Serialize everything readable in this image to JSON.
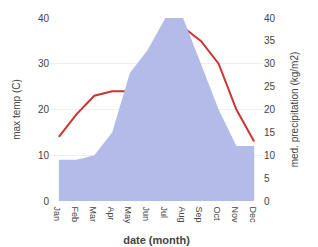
{
  "chart_data": {
    "type": "line",
    "categories": [
      "Jan",
      "Feb",
      "Mar",
      "Apr",
      "May",
      "Jun",
      "Jul",
      "Aug",
      "Sep",
      "Oct",
      "Nov",
      "Dec"
    ],
    "series": [
      {
        "type": "area",
        "color": "#b3bce8",
        "axis": "y2",
        "values": [
          9,
          9,
          10,
          15,
          28,
          33,
          40,
          40,
          30,
          20,
          12,
          12
        ]
      },
      {
        "type": "line",
        "color": "#cc3333",
        "values": [
          14,
          19,
          23,
          24,
          24,
          30,
          35,
          38,
          35,
          30,
          20,
          13
        ]
      }
    ],
    "xlabel": "date (month)",
    "ylabel": "max temp (C)",
    "y2label": "med. precipitation (kg/m2)",
    "ylim": [
      0,
      40
    ],
    "yticks": [
      0,
      10,
      20,
      30,
      40
    ],
    "y2lim": [
      0,
      40
    ],
    "y2ticks": [
      0,
      5,
      10,
      15,
      20,
      25,
      30,
      35,
      40
    ],
    "grid": true
  }
}
